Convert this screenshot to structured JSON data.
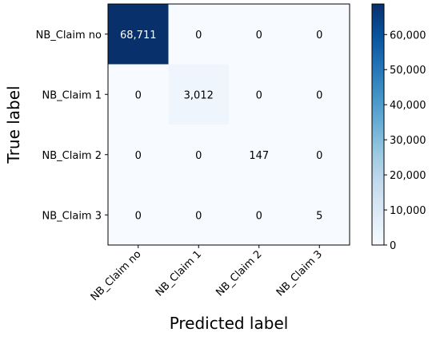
{
  "chart_data": {
    "type": "heatmap",
    "title": "",
    "xlabel": "Predicted label",
    "ylabel": "True label",
    "x_categories": [
      "NB_Claim no",
      "NB_Claim 1",
      "NB_Claim 2",
      "NB_Claim 3"
    ],
    "y_categories": [
      "NB_Claim no",
      "NB_Claim 1",
      "NB_Claim 2",
      "NB_Claim 3"
    ],
    "values": [
      [
        68711,
        0,
        0,
        0
      ],
      [
        0,
        3012,
        0,
        0
      ],
      [
        0,
        0,
        147,
        0
      ],
      [
        0,
        0,
        0,
        5
      ]
    ],
    "cell_labels": [
      [
        "68,711",
        "0",
        "0",
        "0"
      ],
      [
        "0",
        "3,012",
        "0",
        "0"
      ],
      [
        "0",
        "0",
        "147",
        "0"
      ],
      [
        "0",
        "0",
        "0",
        "5"
      ]
    ],
    "colormap": "Blues",
    "colorbar": {
      "range": [
        0,
        68711
      ],
      "ticks": [
        0,
        10000,
        20000,
        30000,
        40000,
        50000,
        60000
      ],
      "tick_labels": [
        "0",
        "10,000",
        "20,000",
        "30,000",
        "40,000",
        "50,000",
        "60,000"
      ]
    },
    "colors": {
      "low": "#f7fbff",
      "high": "#08306b",
      "dark_text": "#000000",
      "light_text": "#ffffff"
    }
  }
}
